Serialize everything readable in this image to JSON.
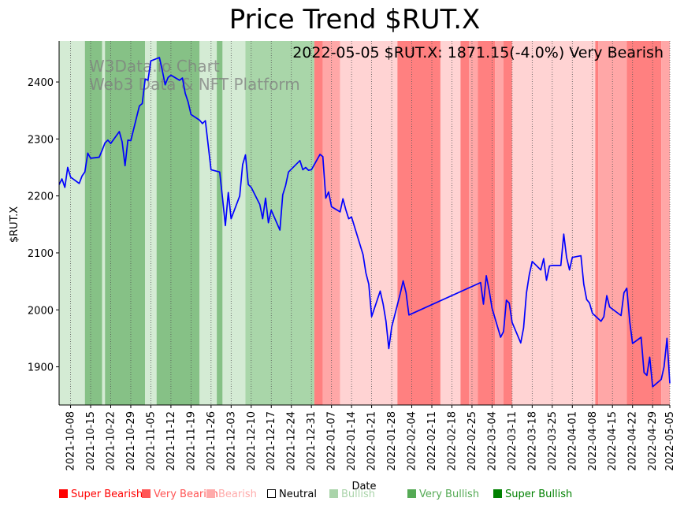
{
  "chart_data": {
    "type": "line",
    "title": "Price Trend $RUT.X",
    "subtitle": "2022-05-05 $RUT.X: 1871.15(-4.0%) Very Bearish",
    "watermark": [
      "W3Data.io Chart",
      "Web3 Data & NFT Platform"
    ],
    "xlabel": "Date",
    "ylabel": "$RUT.X",
    "x_range": [
      "2021-10-04",
      "2022-05-05"
    ],
    "ylim": [
      1833,
      2472
    ],
    "y_ticks": [
      1900,
      2000,
      2100,
      2200,
      2300,
      2400
    ],
    "x_ticks": [
      "2021-10-08",
      "2021-10-15",
      "2021-10-22",
      "2021-10-29",
      "2021-11-05",
      "2021-11-12",
      "2021-11-19",
      "2021-11-26",
      "2021-12-03",
      "2021-12-10",
      "2021-12-17",
      "2021-12-24",
      "2021-12-31",
      "2022-01-07",
      "2022-01-14",
      "2022-01-21",
      "2022-01-28",
      "2022-02-04",
      "2022-02-11",
      "2022-02-18",
      "2022-02-25",
      "2022-03-04",
      "2022-03-11",
      "2022-03-18",
      "2022-03-25",
      "2022-04-01",
      "2022-04-08",
      "2022-04-15",
      "2022-04-22",
      "2022-04-29",
      "2022-05-05"
    ],
    "grid": "vertical dotted at x ticks",
    "line_color": "#0000ff",
    "series": [
      {
        "values": [
          [
            "2021-10-04",
            2220
          ],
          [
            "2021-10-05",
            2230
          ],
          [
            "2021-10-06",
            2215
          ],
          [
            "2021-10-07",
            2250
          ],
          [
            "2021-10-08",
            2233
          ],
          [
            "2021-10-11",
            2222
          ],
          [
            "2021-10-12",
            2235
          ],
          [
            "2021-10-13",
            2242
          ],
          [
            "2021-10-14",
            2275
          ],
          [
            "2021-10-15",
            2266
          ],
          [
            "2021-10-18",
            2268
          ],
          [
            "2021-10-19",
            2280
          ],
          [
            "2021-10-20",
            2293
          ],
          [
            "2021-10-21",
            2298
          ],
          [
            "2021-10-22",
            2292
          ],
          [
            "2021-10-25",
            2313
          ],
          [
            "2021-10-26",
            2295
          ],
          [
            "2021-10-27",
            2253
          ],
          [
            "2021-10-28",
            2298
          ],
          [
            "2021-10-29",
            2297
          ],
          [
            "2021-11-01",
            2358
          ],
          [
            "2021-11-02",
            2362
          ],
          [
            "2021-11-03",
            2405
          ],
          [
            "2021-11-04",
            2403
          ],
          [
            "2021-11-05",
            2437
          ],
          [
            "2021-11-08",
            2443
          ],
          [
            "2021-11-09",
            2420
          ],
          [
            "2021-11-10",
            2395
          ],
          [
            "2021-11-11",
            2408
          ],
          [
            "2021-11-12",
            2412
          ],
          [
            "2021-11-15",
            2403
          ],
          [
            "2021-11-16",
            2407
          ],
          [
            "2021-11-17",
            2380
          ],
          [
            "2021-11-18",
            2365
          ],
          [
            "2021-11-19",
            2343
          ],
          [
            "2021-11-22",
            2333
          ],
          [
            "2021-11-23",
            2327
          ],
          [
            "2021-11-24",
            2332
          ],
          [
            "2021-11-26",
            2246
          ],
          [
            "2021-11-29",
            2242
          ],
          [
            "2021-11-30",
            2196
          ],
          [
            "2021-12-01",
            2148
          ],
          [
            "2021-12-02",
            2206
          ],
          [
            "2021-12-03",
            2160
          ],
          [
            "2021-12-06",
            2200
          ],
          [
            "2021-12-07",
            2255
          ],
          [
            "2021-12-08",
            2272
          ],
          [
            "2021-12-09",
            2220
          ],
          [
            "2021-12-10",
            2215
          ],
          [
            "2021-12-13",
            2185
          ],
          [
            "2021-12-14",
            2160
          ],
          [
            "2021-12-15",
            2196
          ],
          [
            "2021-12-16",
            2153
          ],
          [
            "2021-12-17",
            2175
          ],
          [
            "2021-12-20",
            2140
          ],
          [
            "2021-12-21",
            2202
          ],
          [
            "2021-12-22",
            2218
          ],
          [
            "2021-12-23",
            2242
          ],
          [
            "2021-12-27",
            2262
          ],
          [
            "2021-12-28",
            2246
          ],
          [
            "2021-12-29",
            2250
          ],
          [
            "2021-12-30",
            2245
          ],
          [
            "2021-12-31",
            2246
          ],
          [
            "2022-01-03",
            2273
          ],
          [
            "2022-01-04",
            2269
          ],
          [
            "2022-01-05",
            2196
          ],
          [
            "2022-01-06",
            2207
          ],
          [
            "2022-01-07",
            2181
          ],
          [
            "2022-01-10",
            2172
          ],
          [
            "2022-01-11",
            2195
          ],
          [
            "2022-01-12",
            2176
          ],
          [
            "2022-01-13",
            2160
          ],
          [
            "2022-01-14",
            2163
          ],
          [
            "2022-01-18",
            2097
          ],
          [
            "2022-01-19",
            2065
          ],
          [
            "2022-01-20",
            2045
          ],
          [
            "2022-01-21",
            1988
          ],
          [
            "2022-01-24",
            2033
          ],
          [
            "2022-01-25",
            2010
          ],
          [
            "2022-01-26",
            1980
          ],
          [
            "2022-01-27",
            1932
          ],
          [
            "2022-01-28",
            1970
          ],
          [
            "2022-01-31",
            2029
          ],
          [
            "2022-02-01",
            2051
          ],
          [
            "2022-02-02",
            2030
          ],
          [
            "2022-02-03",
            1991
          ],
          [
            "2022-02-28",
            2048
          ],
          [
            "2022-03-01",
            2010
          ],
          [
            "2022-03-02",
            2060
          ],
          [
            "2022-03-03",
            2034
          ],
          [
            "2022-03-04",
            2003
          ],
          [
            "2022-03-07",
            1952
          ],
          [
            "2022-03-08",
            1962
          ],
          [
            "2022-03-09",
            2017
          ],
          [
            "2022-03-10",
            2012
          ],
          [
            "2022-03-11",
            1978
          ],
          [
            "2022-03-14",
            1942
          ],
          [
            "2022-03-15",
            1968
          ],
          [
            "2022-03-16",
            2030
          ],
          [
            "2022-03-17",
            2062
          ],
          [
            "2022-03-18",
            2085
          ],
          [
            "2022-03-21",
            2070
          ],
          [
            "2022-03-22",
            2090
          ],
          [
            "2022-03-23",
            2052
          ],
          [
            "2022-03-24",
            2077
          ],
          [
            "2022-03-25",
            2078
          ],
          [
            "2022-03-28",
            2078
          ],
          [
            "2022-03-29",
            2133
          ],
          [
            "2022-03-30",
            2092
          ],
          [
            "2022-03-31",
            2070
          ],
          [
            "2022-04-01",
            2092
          ],
          [
            "2022-04-04",
            2095
          ],
          [
            "2022-04-05",
            2045
          ],
          [
            "2022-04-06",
            2018
          ],
          [
            "2022-04-07",
            2012
          ],
          [
            "2022-04-08",
            1994
          ],
          [
            "2022-04-11",
            1980
          ],
          [
            "2022-04-12",
            1988
          ],
          [
            "2022-04-13",
            2025
          ],
          [
            "2022-04-14",
            2005
          ],
          [
            "2022-04-18",
            1990
          ],
          [
            "2022-04-19",
            2030
          ],
          [
            "2022-04-20",
            2038
          ],
          [
            "2022-04-21",
            1980
          ],
          [
            "2022-04-22",
            1941
          ],
          [
            "2022-04-25",
            1952
          ],
          [
            "2022-04-26",
            1890
          ],
          [
            "2022-04-27",
            1885
          ],
          [
            "2022-04-28",
            1917
          ],
          [
            "2022-04-29",
            1865
          ],
          [
            "2022-05-02",
            1878
          ],
          [
            "2022-05-03",
            1900
          ],
          [
            "2022-05-04",
            1950
          ],
          [
            "2022-05-05",
            1871
          ]
        ]
      }
    ],
    "sentiment_bands": [
      {
        "from": "2021-10-04",
        "to": "2021-10-13",
        "level": "Bullish"
      },
      {
        "from": "2021-10-13",
        "to": "2021-10-19",
        "level": "Very Bullish"
      },
      {
        "from": "2021-10-19",
        "to": "2021-10-20",
        "level": "Bullish"
      },
      {
        "from": "2021-10-20",
        "to": "2021-11-03",
        "level": "Very Bullish"
      },
      {
        "from": "2021-11-03",
        "to": "2021-11-07",
        "level": "Bullish"
      },
      {
        "from": "2021-11-07",
        "to": "2021-11-22",
        "level": "Very Bullish"
      },
      {
        "from": "2021-11-22",
        "to": "2021-11-28",
        "level": "Bullish"
      },
      {
        "from": "2021-11-28",
        "to": "2021-11-30",
        "level": "Very Bullish"
      },
      {
        "from": "2021-11-30",
        "to": "2021-12-08",
        "level": "Bullish"
      },
      {
        "from": "2021-12-08",
        "to": "2022-01-01",
        "level": "Neutral"
      },
      {
        "from": "2022-01-01",
        "to": "2022-01-04",
        "level": "Very Bearish"
      },
      {
        "from": "2022-01-04",
        "to": "2022-01-10",
        "level": "Bearish"
      },
      {
        "from": "2022-01-10",
        "to": "2022-01-30",
        "level": "Neutral"
      },
      {
        "from": "2022-01-30",
        "to": "2022-02-14",
        "level": "Very Bearish"
      },
      {
        "from": "2022-02-14",
        "to": "2022-02-21",
        "level": "Neutral"
      },
      {
        "from": "2022-02-21",
        "to": "2022-02-24",
        "level": "Very Bearish"
      },
      {
        "from": "2022-02-24",
        "to": "2022-02-27",
        "level": "Bearish"
      },
      {
        "from": "2022-02-27",
        "to": "2022-03-05",
        "level": "Very Bearish"
      },
      {
        "from": "2022-03-05",
        "to": "2022-03-08",
        "level": "Bearish"
      },
      {
        "from": "2022-03-08",
        "to": "2022-03-11",
        "level": "Very Bearish"
      },
      {
        "from": "2022-03-11",
        "to": "2022-04-09",
        "level": "Neutral"
      },
      {
        "from": "2022-04-09",
        "to": "2022-04-10",
        "level": "Very Bearish"
      },
      {
        "from": "2022-04-10",
        "to": "2022-04-20",
        "level": "Bearish"
      },
      {
        "from": "2022-04-20",
        "to": "2022-05-02",
        "level": "Very Bearish"
      },
      {
        "from": "2022-05-02",
        "to": "2022-05-05",
        "level": "Bearish"
      }
    ],
    "band_colors": {
      "Bullish": "#d4ebd4",
      "Very Bullish": "#86c186",
      "Neutral_green": "#a9d6a9",
      "Neutral": "#ffd3d3",
      "Bearish": "#ffa7a7",
      "Very Bearish": "#ff8080"
    },
    "legend": [
      {
        "label": "Super Bearish",
        "color": "#ff0000"
      },
      {
        "label": "Very Bearish",
        "color": "#ff5555"
      },
      {
        "label": "Bearish",
        "color": "#ffaaaa"
      },
      {
        "label": "Neutral",
        "color": "#ffffff"
      },
      {
        "label": "Bullish",
        "color": "#aad4aa"
      },
      {
        "label": "Very Bullish",
        "color": "#55aa55"
      },
      {
        "label": "Super Bullish",
        "color": "#008000"
      }
    ]
  }
}
